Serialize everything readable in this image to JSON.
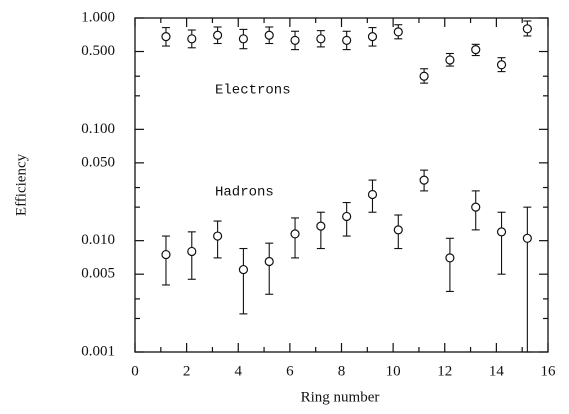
{
  "chart_data": {
    "type": "scatter",
    "xlabel": "Ring number",
    "ylabel": "Efficiency",
    "log_y": true,
    "xlim": [
      0,
      16
    ],
    "ylim": [
      0.001,
      1
    ],
    "xticks": [
      0,
      2,
      4,
      6,
      8,
      10,
      12,
      14,
      16
    ],
    "xminor_ticks": [
      1,
      3,
      5,
      7,
      9,
      11,
      13,
      15
    ],
    "yticks": [
      0.001,
      0.005,
      {
        "value": 0.01,
        "label": "0.010"
      },
      {
        "value": 0.05,
        "label": "0.050"
      },
      {
        "value": 0.1,
        "label": "0.100"
      },
      {
        "value": 0.5,
        "label": "0.500"
      },
      {
        "value": 1,
        "label": "1.000"
      }
    ],
    "yminor_ticks": [
      0.002,
      0.003,
      0.02,
      0.03,
      0.2,
      0.3
    ],
    "series": [
      {
        "name": "Electrons",
        "color": "#111111",
        "x": [
          1.2,
          2.2,
          3.2,
          4.2,
          5.2,
          6.2,
          7.2,
          8.2,
          9.2,
          10.2,
          11.2,
          12.2,
          13.2,
          14.2,
          15.2
        ],
        "values": [
          0.68,
          0.65,
          0.7,
          0.65,
          0.7,
          0.63,
          0.65,
          0.63,
          0.68,
          0.75,
          0.3,
          0.42,
          0.52,
          0.38,
          0.8
        ],
        "lower": [
          0.56,
          0.54,
          0.59,
          0.53,
          0.59,
          0.52,
          0.55,
          0.52,
          0.56,
          0.65,
          0.26,
          0.37,
          0.46,
          0.33,
          0.69
        ],
        "upper": [
          0.82,
          0.78,
          0.83,
          0.79,
          0.83,
          0.76,
          0.77,
          0.76,
          0.82,
          0.87,
          0.35,
          0.48,
          0.58,
          0.44,
          0.94
        ]
      },
      {
        "name": "Hadrons",
        "color": "#111111",
        "x": [
          1.2,
          2.2,
          3.2,
          4.2,
          5.2,
          6.2,
          7.2,
          8.2,
          9.2,
          10.2,
          11.2,
          12.2,
          13.2,
          14.2,
          15.2
        ],
        "values": [
          0.0075,
          0.008,
          0.011,
          0.0055,
          0.0065,
          0.0115,
          0.0135,
          0.0165,
          0.026,
          0.0125,
          0.035,
          0.007,
          0.02,
          0.012,
          0.0105
        ],
        "lower": [
          0.004,
          0.0045,
          0.007,
          0.0022,
          0.0033,
          0.007,
          0.0085,
          0.011,
          0.018,
          0.0085,
          0.028,
          0.0035,
          0.0125,
          0.005,
          0.001
        ],
        "upper": [
          0.011,
          0.012,
          0.015,
          0.0085,
          0.0095,
          0.016,
          0.018,
          0.022,
          0.035,
          0.017,
          0.043,
          0.0105,
          0.028,
          0.018,
          0.02
        ]
      }
    ]
  }
}
